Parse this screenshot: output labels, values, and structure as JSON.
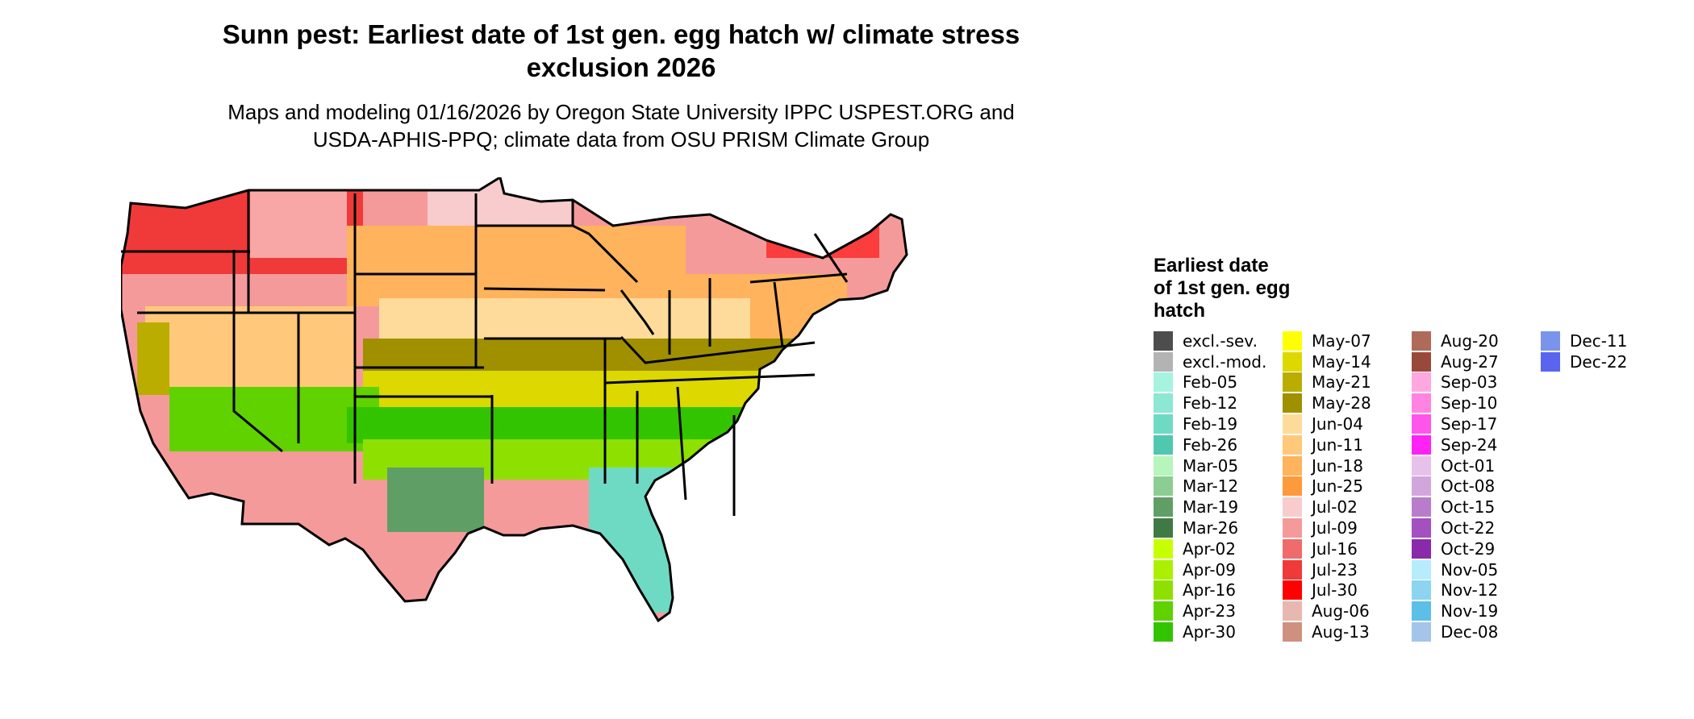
{
  "title": {
    "line1": "Sunn pest: Earliest date of 1st gen. egg hatch w/ climate stress",
    "line2": "exclusion 2026"
  },
  "subtitle": {
    "line1": "Maps and modeling 01/16/2026 by Oregon State University IPPC USPEST.ORG and",
    "line2": "USDA-APHIS-PPQ; climate data from OSU PRISM Climate Group"
  },
  "legend": {
    "title_lines": [
      "Earliest date",
      "of 1st gen. egg",
      "hatch"
    ],
    "columns": [
      [
        {
          "label": "excl.-sev.",
          "color": "#4d4d4d"
        },
        {
          "label": "excl.-mod.",
          "color": "#b3b3b3"
        },
        {
          "label": "Feb-05",
          "color": "#a6f3df"
        },
        {
          "label": "Feb-12",
          "color": "#8ce8d2"
        },
        {
          "label": "Feb-19",
          "color": "#6fdac3"
        },
        {
          "label": "Feb-26",
          "color": "#50c8b0"
        },
        {
          "label": "Mar-05",
          "color": "#b6f5bc"
        },
        {
          "label": "Mar-12",
          "color": "#8ccd92"
        },
        {
          "label": "Mar-19",
          "color": "#5f9f66"
        },
        {
          "label": "Mar-26",
          "color": "#3f7a45"
        },
        {
          "label": "Apr-02",
          "color": "#c8ff00"
        },
        {
          "label": "Apr-09",
          "color": "#aaf000"
        },
        {
          "label": "Apr-16",
          "color": "#8ee000"
        },
        {
          "label": "Apr-23",
          "color": "#5fd200"
        },
        {
          "label": "Apr-30",
          "color": "#33c400"
        }
      ],
      [
        {
          "label": "May-07",
          "color": "#ffff00"
        },
        {
          "label": "May-14",
          "color": "#dcd800"
        },
        {
          "label": "May-21",
          "color": "#bbad00"
        },
        {
          "label": "May-28",
          "color": "#a09000"
        },
        {
          "label": "Jun-04",
          "color": "#ffdb9b"
        },
        {
          "label": "Jun-11",
          "color": "#ffc87a"
        },
        {
          "label": "Jun-18",
          "color": "#ffb35c"
        },
        {
          "label": "Jun-25",
          "color": "#ff9a3c"
        },
        {
          "label": "Jul-02",
          "color": "#f8cccc"
        },
        {
          "label": "Jul-09",
          "color": "#f59a9a"
        },
        {
          "label": "Jul-16",
          "color": "#f06b6b"
        },
        {
          "label": "Jul-23",
          "color": "#f03a3a"
        },
        {
          "label": "Jul-30",
          "color": "#ff0000"
        },
        {
          "label": "Aug-06",
          "color": "#e8b8b0"
        },
        {
          "label": "Aug-13",
          "color": "#d09080"
        }
      ],
      [
        {
          "label": "Aug-20",
          "color": "#b06a5a"
        },
        {
          "label": "Aug-27",
          "color": "#99493a"
        },
        {
          "label": "Sep-03",
          "color": "#ffa8e0"
        },
        {
          "label": "Sep-10",
          "color": "#ff84e2"
        },
        {
          "label": "Sep-17",
          "color": "#ff55ea"
        },
        {
          "label": "Sep-24",
          "color": "#ff22f5"
        },
        {
          "label": "Oct-01",
          "color": "#e6c2ea"
        },
        {
          "label": "Oct-08",
          "color": "#d2a6dc"
        },
        {
          "label": "Oct-15",
          "color": "#b97ccc"
        },
        {
          "label": "Oct-22",
          "color": "#a450be"
        },
        {
          "label": "Oct-29",
          "color": "#8a2aaa"
        },
        {
          "label": "Nov-05",
          "color": "#b6ecfc"
        },
        {
          "label": "Nov-12",
          "color": "#8cd4f0"
        },
        {
          "label": "Nov-19",
          "color": "#5cbfe8"
        },
        {
          "label": "Dec-08",
          "color": "#a4c4ea"
        }
      ],
      [
        {
          "label": "Dec-11",
          "color": "#7a94ec"
        },
        {
          "label": "Dec-22",
          "color": "#5a64ee"
        }
      ]
    ]
  }
}
